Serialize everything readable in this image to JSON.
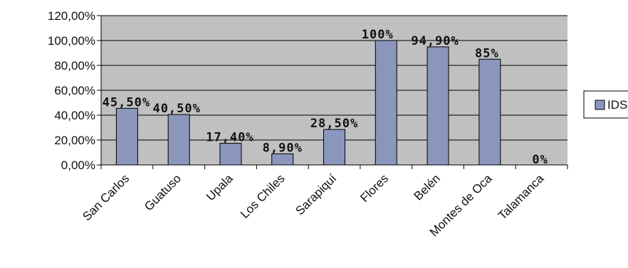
{
  "chart_data": {
    "type": "bar",
    "categories": [
      "San Carlos",
      "Guatuso",
      "Upala",
      "Los Chiles",
      "Sarapiquí",
      "Flores",
      "Belén",
      "Montes de Oca",
      "Talamanca"
    ],
    "series": [
      {
        "name": "IDS",
        "values": [
          45.5,
          40.5,
          17.4,
          8.9,
          28.5,
          100,
          94.9,
          85,
          0
        ],
        "data_labels": [
          "45,50%",
          "40,50%",
          "17,40%",
          "8,90%",
          "28,50%",
          "100%",
          "94,90%",
          "85%",
          "0%"
        ]
      }
    ],
    "y_tick_labels": [
      "0,00%",
      "20,00%",
      "40,00%",
      "60,00%",
      "80,00%",
      "100,00%",
      "120,00%"
    ],
    "ylim": [
      0,
      120
    ],
    "grid": true,
    "legend": "right",
    "colors": {
      "bar_fill": "#8b96bd",
      "bar_stroke": "#000000",
      "plot_background": "#c0c0c0",
      "gridline": "#000000"
    }
  }
}
